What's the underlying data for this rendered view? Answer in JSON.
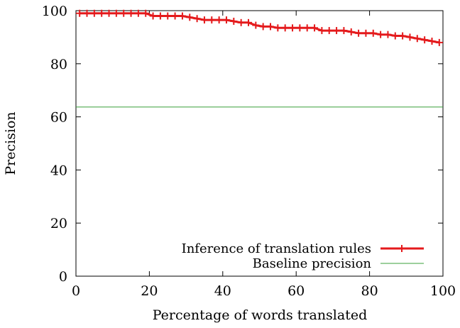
{
  "chart_data": {
    "type": "line",
    "title": "",
    "xlabel": "Percentage of words translated",
    "ylabel": "Precision",
    "xlim": [
      0,
      100
    ],
    "ylim": [
      0,
      100
    ],
    "x_ticks": [
      "0",
      "20",
      "40",
      "60",
      "80",
      "100"
    ],
    "y_ticks": [
      "0",
      "20",
      "40",
      "60",
      "80",
      "100"
    ],
    "legend_position": "bottom-right",
    "series": [
      {
        "name": "Inference of translation rules",
        "color": "#e41a1c",
        "marker": "plus",
        "x": [
          1,
          3,
          5,
          7,
          9,
          11,
          13,
          15,
          17,
          19,
          21,
          23,
          25,
          27,
          29,
          31,
          33,
          35,
          37,
          39,
          41,
          43,
          45,
          47,
          49,
          51,
          53,
          55,
          57,
          59,
          61,
          63,
          65,
          67,
          69,
          71,
          73,
          75,
          77,
          79,
          81,
          83,
          85,
          87,
          89,
          91,
          93,
          95,
          97,
          99
        ],
        "y": [
          99,
          99,
          99,
          99,
          99,
          99,
          99,
          99,
          99,
          99,
          98,
          98,
          98,
          98,
          98,
          97.5,
          97,
          96.5,
          96.5,
          96.5,
          96.5,
          96,
          95.5,
          95.5,
          94.5,
          94,
          94,
          93.5,
          93.5,
          93.5,
          93.5,
          93.5,
          93.5,
          92.5,
          92.5,
          92.5,
          92.5,
          92,
          91.5,
          91.5,
          91.5,
          91,
          91,
          90.5,
          90.5,
          90,
          89.5,
          89,
          88.5,
          88
        ]
      },
      {
        "name": "Baseline precision",
        "color": "#3aa03a",
        "marker": "none",
        "x": [
          0,
          100
        ],
        "y": [
          63.7,
          63.7
        ]
      }
    ]
  }
}
